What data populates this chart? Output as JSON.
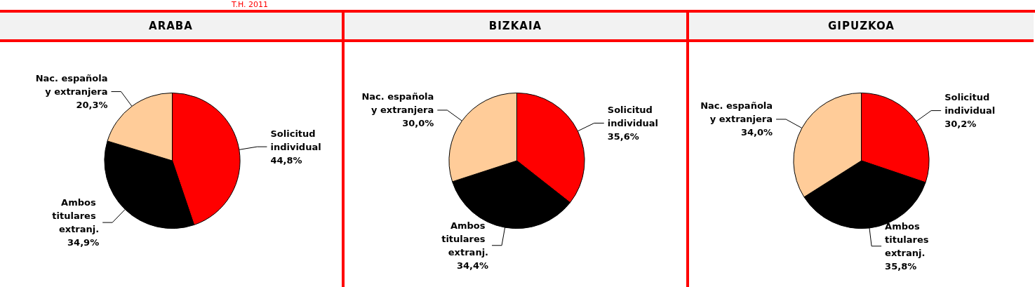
{
  "chart_data": [
    {
      "type": "pie",
      "title": "ARABA",
      "annotations": [
        "T.H. 2011"
      ],
      "categories": [
        "Solicitud individual",
        "Ambos titulares extranj.",
        "Nac. española y extranjera"
      ],
      "values": [
        44.8,
        34.9,
        20.3
      ],
      "colors": [
        "#ff0000",
        "#000000",
        "#ffcc99"
      ],
      "value_labels": [
        "44,8%",
        "34,9%",
        "20,3%"
      ]
    },
    {
      "type": "pie",
      "title": "BIZKAIA",
      "categories": [
        "Solicitud individual",
        "Ambos titulares extranj.",
        "Nac. española y extranjera"
      ],
      "values": [
        35.6,
        34.4,
        30.0
      ],
      "colors": [
        "#ff0000",
        "#000000",
        "#ffcc99"
      ],
      "value_labels": [
        "35,6%",
        "34,4%",
        "30,0%"
      ]
    },
    {
      "type": "pie",
      "title": "GIPUZKOA",
      "categories": [
        "Solicitud individual",
        "Ambos titulares extranj.",
        "Nac. española y extranjera"
      ],
      "values": [
        30.2,
        35.8,
        34.0
      ],
      "colors": [
        "#ff0000",
        "#000000",
        "#ffcc99"
      ],
      "value_labels": [
        "30,2%",
        "35,8%",
        "34,0%"
      ]
    }
  ]
}
